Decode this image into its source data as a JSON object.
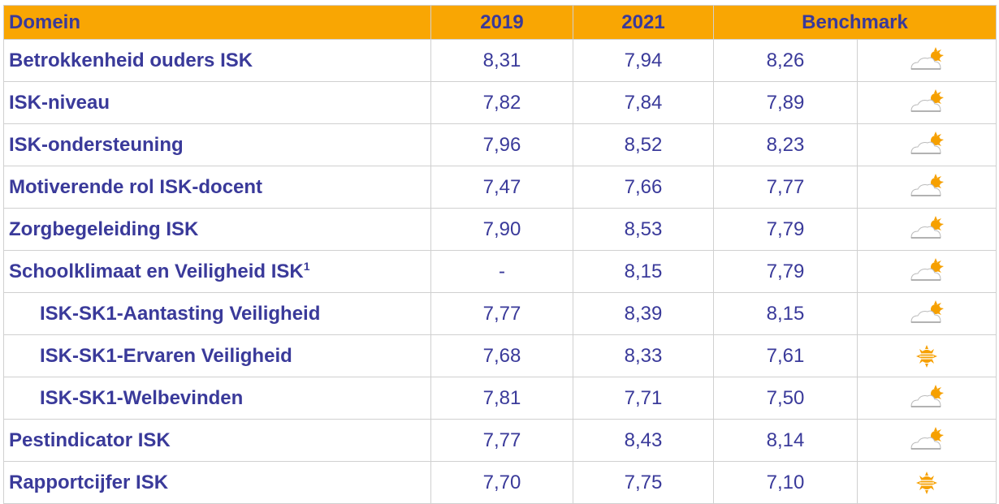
{
  "table": {
    "header": [
      "Domein",
      "2019",
      "2021",
      "Benchmark"
    ],
    "rows": [
      {
        "label": "Betrokkenheid ouders ISK",
        "values": [
          "8,31",
          "7,94",
          "8,26"
        ]
      },
      {
        "label": "ISK-niveau",
        "values": [
          "7,82",
          "7,84",
          "7,89"
        ]
      },
      {
        "label": "ISK-ondersteuning",
        "values": [
          "7,96",
          "8,52",
          "8,23"
        ]
      },
      {
        "label": "Motiverende rol ISK-docent",
        "values": [
          "7,47",
          "7,66",
          "7,77"
        ]
      },
      {
        "label": "Zorgbegeleiding ISK",
        "values": [
          "7,90",
          "8,53",
          "7,79"
        ]
      },
      {
        "label": "Schoolklimaat en Veiligheid ISK",
        "sup": "1",
        "values": [
          "-",
          "8,15",
          "7,79"
        ]
      },
      {
        "label": "ISK-SK1-Aantasting Veiligheid",
        "values": [
          "7,77",
          "8,39",
          "8,15"
        ]
      },
      {
        "label": "ISK-SK1-Ervaren Veiligheid",
        "values": [
          "7,68",
          "8,33",
          "7,61"
        ]
      },
      {
        "label": "ISK-SK1-Welbevinden",
        "values": [
          "7,81",
          "7,71",
          "7,50"
        ]
      },
      {
        "label": "Pestindicator ISK",
        "values": [
          "7,77",
          "8,43",
          "8,14"
        ]
      },
      {
        "label": "Rapportcijfer ISK",
        "values": [
          "7,70",
          "7,75",
          "7,10"
        ]
      }
    ]
  }
}
